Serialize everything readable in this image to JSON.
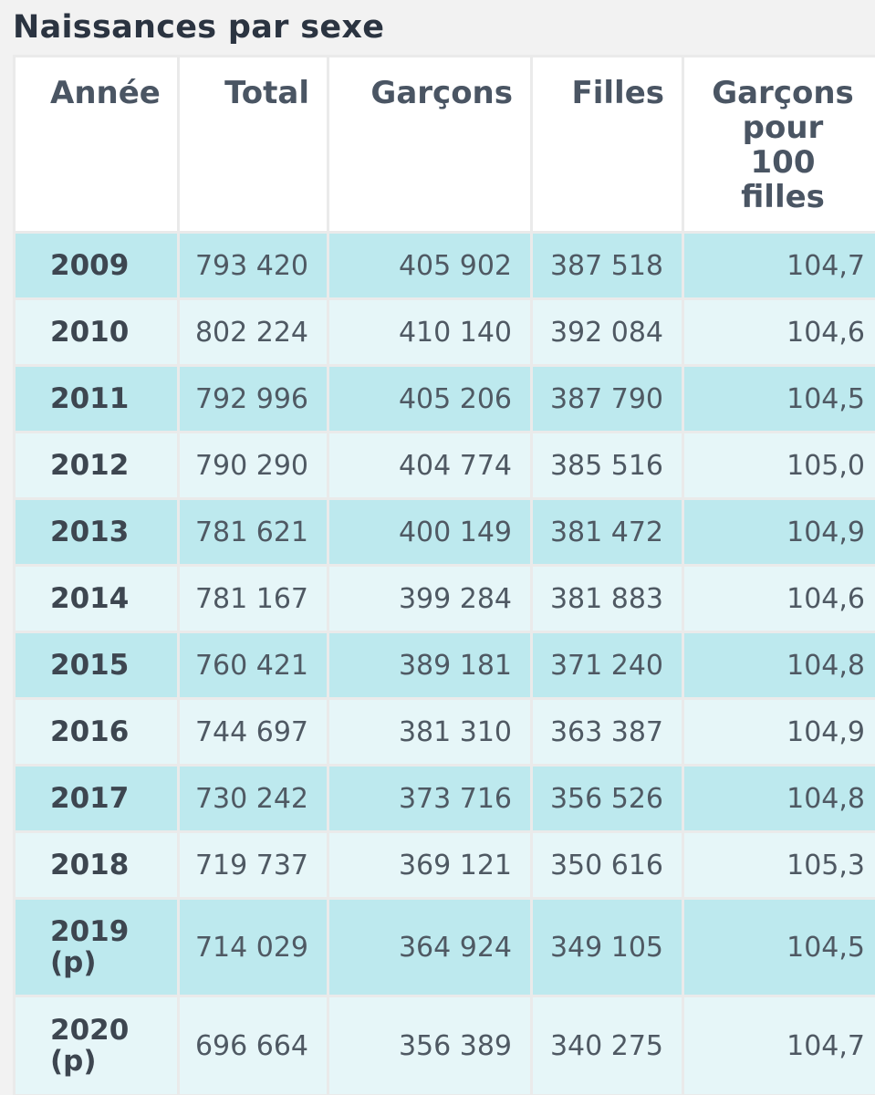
{
  "title": "Naissances par sexe",
  "headers": {
    "year": "Année",
    "total": "Total",
    "boys": "Garçons",
    "girls": "Filles",
    "ratio_line1": "Garçons",
    "ratio_line2": "pour",
    "ratio_line3": "100",
    "ratio_line4": "filles"
  },
  "rows": [
    {
      "year": "2009",
      "year_note": "",
      "total": "793 420",
      "boys": "405 902",
      "girls": "387 518",
      "ratio": "104,7"
    },
    {
      "year": "2010",
      "year_note": "",
      "total": "802 224",
      "boys": "410 140",
      "girls": "392 084",
      "ratio": "104,6"
    },
    {
      "year": "2011",
      "year_note": "",
      "total": "792 996",
      "boys": "405 206",
      "girls": "387 790",
      "ratio": "104,5"
    },
    {
      "year": "2012",
      "year_note": "",
      "total": "790 290",
      "boys": "404 774",
      "girls": "385 516",
      "ratio": "105,0"
    },
    {
      "year": "2013",
      "year_note": "",
      "total": "781 621",
      "boys": "400 149",
      "girls": "381 472",
      "ratio": "104,9"
    },
    {
      "year": "2014",
      "year_note": "",
      "total": "781 167",
      "boys": "399 284",
      "girls": "381 883",
      "ratio": "104,6"
    },
    {
      "year": "2015",
      "year_note": "",
      "total": "760 421",
      "boys": "389 181",
      "girls": "371 240",
      "ratio": "104,8"
    },
    {
      "year": "2016",
      "year_note": "",
      "total": "744 697",
      "boys": "381 310",
      "girls": "363 387",
      "ratio": "104,9"
    },
    {
      "year": "2017",
      "year_note": "",
      "total": "730 242",
      "boys": "373 716",
      "girls": "356 526",
      "ratio": "104,8"
    },
    {
      "year": "2018",
      "year_note": "",
      "total": "719 737",
      "boys": "369 121",
      "girls": "350 616",
      "ratio": "105,3"
    },
    {
      "year": "2019",
      "year_note": "(p)",
      "total": "714 029",
      "boys": "364 924",
      "girls": "349 105",
      "ratio": "104,5"
    },
    {
      "year": "2020",
      "year_note": "(p)",
      "total": "696 664",
      "boys": "356 389",
      "girls": "340 275",
      "ratio": "104,7"
    }
  ]
}
